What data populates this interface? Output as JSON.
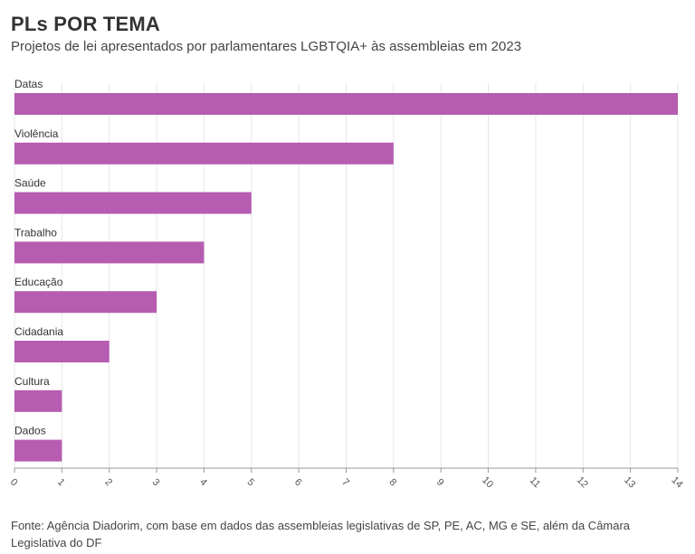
{
  "title": "PLs POR TEMA",
  "subtitle": "Projetos de lei apresentados por parlamentares LGBTQIA+ às assembleias em 2023",
  "source": "Fonte: Agência Diadorim, com base em dados das assembleias legislativas de SP, PE, AC, MG e SE, além da Câmara Legislativa do DF",
  "chart_data": {
    "type": "bar",
    "orientation": "horizontal",
    "categories": [
      "Datas",
      "Violência",
      "Saúde",
      "Trabalho",
      "Educação",
      "Cidadania",
      "Cultura",
      "Dados"
    ],
    "values": [
      14,
      8,
      5,
      4,
      3,
      2,
      1,
      1
    ],
    "xlim": [
      0,
      14
    ],
    "xticks": [
      0,
      1,
      2,
      3,
      4,
      5,
      6,
      7,
      8,
      9,
      10,
      11,
      12,
      13,
      14
    ],
    "bar_color": "#b65cb1",
    "grid": true
  }
}
